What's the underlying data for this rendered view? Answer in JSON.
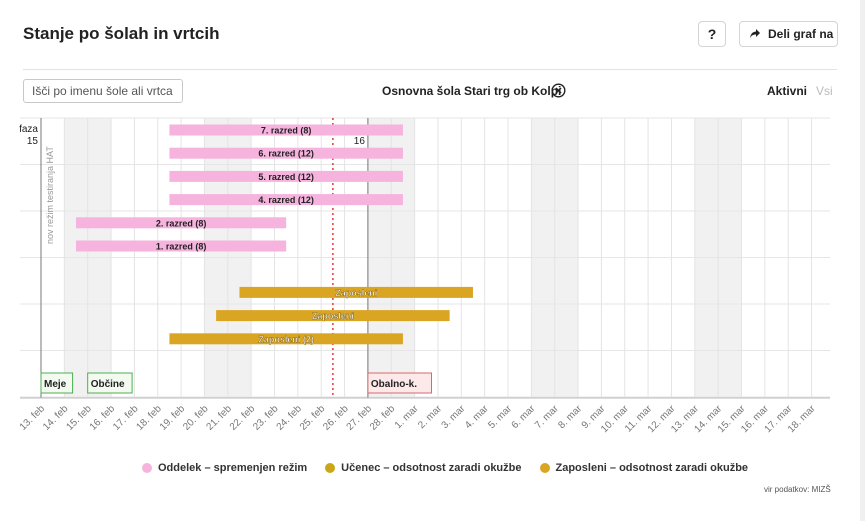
{
  "header": {
    "title": "Stanje po šolah in vrtcih",
    "help_label": "?",
    "share_label": "Deli graf na"
  },
  "toolbar": {
    "search_placeholder": "Išči po imenu šole ali vrtca",
    "selected_school": "Osnovna šola Stari trg ob Kolpi",
    "tab_active": "Aktivni",
    "tab_all": "Vsi"
  },
  "chart_data": {
    "type": "timeline",
    "x_ticks": [
      "13. feb",
      "14. feb",
      "15. feb",
      "16. feb",
      "17. feb",
      "18. feb",
      "19. feb",
      "20. feb",
      "21. feb",
      "22. feb",
      "23. feb",
      "24. feb",
      "25. feb",
      "26. feb",
      "27. feb",
      "28. feb",
      "1. mar",
      "2. mar",
      "3. mar",
      "4. mar",
      "5. mar",
      "6. mar",
      "7. mar",
      "8. mar",
      "9. mar",
      "10. mar",
      "11. mar",
      "12. mar",
      "13. mar",
      "14. mar",
      "15. mar",
      "16. mar",
      "17. mar",
      "18. mar"
    ],
    "weekend_bands": [
      [
        "14. feb",
        "15. feb"
      ],
      [
        "20. feb",
        "21. feb"
      ],
      [
        "27. feb",
        "28. feb"
      ],
      [
        "6. mar",
        "7. mar"
      ],
      [
        "13. mar",
        "14. mar"
      ]
    ],
    "today": 12.5,
    "phases": [
      {
        "label": "faza",
        "number": "15",
        "day": 0
      },
      {
        "label": "faza",
        "number": "16",
        "day": 14
      }
    ],
    "phase_note": "nov režim testiranja HAT",
    "rows": [
      {
        "label": "7. razred (8)",
        "type": "oddelek",
        "start": 5.5,
        "end": 15.5
      },
      {
        "label": "6. razred (12)",
        "type": "oddelek",
        "start": 5.5,
        "end": 15.5
      },
      {
        "label": "5. razred (12)",
        "type": "oddelek",
        "start": 5.5,
        "end": 15.5
      },
      {
        "label": "4. razred (12)",
        "type": "oddelek",
        "start": 5.5,
        "end": 15.5
      },
      {
        "label": "2. razred (8)",
        "type": "oddelek",
        "start": 1.5,
        "end": 10.5
      },
      {
        "label": "1. razred (8)",
        "type": "oddelek",
        "start": 1.5,
        "end": 10.5
      },
      null,
      {
        "label": "Zaposleni",
        "type": "zaposleni",
        "start": 8.5,
        "end": 18.5
      },
      {
        "label": "Zaposleni",
        "type": "zaposleni",
        "start": 7.5,
        "end": 17.5
      },
      {
        "label": "Zaposleni (2)",
        "type": "zaposleni",
        "start": 5.5,
        "end": 15.5
      },
      null
    ],
    "events": [
      {
        "label": "Meje",
        "day": 0,
        "color": "green"
      },
      {
        "label": "Občine",
        "day": 2,
        "color": "green"
      },
      {
        "label": "Obalno-k.",
        "day": 14,
        "color": "red"
      }
    ],
    "legend": [
      {
        "label": "Oddelek – spremenjen režim",
        "color": "#f5b3de"
      },
      {
        "label": "Učenec – odsotnost zaradi okužbe",
        "color": "#c9a716"
      },
      {
        "label": "Zaposleni – odsotnost zaradi okužbe",
        "color": "#dba524"
      }
    ]
  },
  "footer": {
    "source": "vir podatkov: MIZŠ"
  }
}
